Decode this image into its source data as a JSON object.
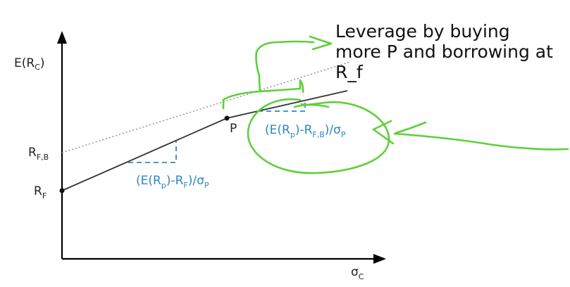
{
  "labels": {
    "y_axis": "E(R",
    "y_axis_sub": "C",
    "y_axis_close": ")",
    "x_axis": "σ",
    "x_axis_sub": "C",
    "rfb": "R",
    "rfb_sub": "F,B",
    "rf": "R",
    "rf_sub": "F",
    "point_p": "P"
  },
  "slope_lending": {
    "a": "(E(R",
    "a_sub": "p",
    "b": ")-R",
    "b_sub": "F",
    "c": ")/σ",
    "c_sub": "P"
  },
  "slope_borrowing": {
    "a": "(E(R",
    "a_sub": "p",
    "b": ")-R",
    "b_sub": "F,B",
    "c": ")/σ",
    "c_sub": "P"
  },
  "annotation": {
    "text": "Leverage by buying\nmore P and borrowing at\nR_f"
  },
  "colors": {
    "axis": "#000000",
    "line": "#333333",
    "dotted": "#999999",
    "slope": "#2e86c1",
    "handwriting": "#5ecf3a"
  }
}
